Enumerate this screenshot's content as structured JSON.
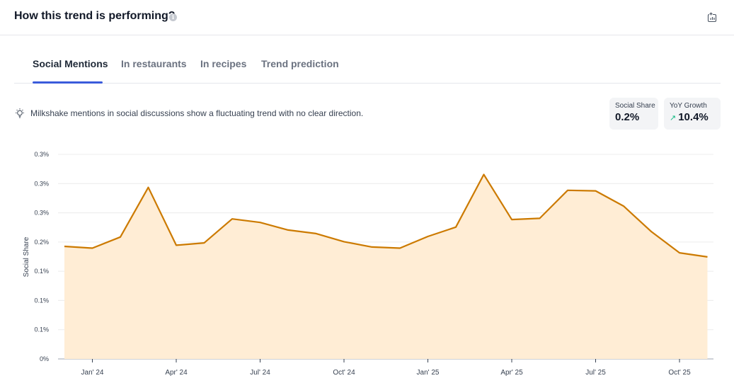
{
  "header": {
    "title": "How this trend is performing?",
    "info_icon": "info-icon",
    "export_icon": "chart-export-icon"
  },
  "tabs": [
    {
      "label": "Social Mentions",
      "active": true
    },
    {
      "label": "In restaurants",
      "active": false
    },
    {
      "label": "In recipes",
      "active": false
    },
    {
      "label": "Trend prediction",
      "active": false
    }
  ],
  "insight": {
    "icon": "lightbulb-icon",
    "text": "Milkshake mentions in social discussions show a fluctuating trend with no clear direction."
  },
  "stats": {
    "social_share": {
      "label": "Social Share",
      "value": "0.2%"
    },
    "yoy_growth": {
      "label": "YoY Growth",
      "value": "10.4%",
      "icon": "trend-up-icon",
      "color": "#10b981"
    }
  },
  "colors": {
    "line": "#cc7a00",
    "fill": "#ffedd5",
    "tab_accent": "#3b5bdb"
  },
  "chart_data": {
    "type": "area",
    "ylabel": "Social Share",
    "xlabel": "",
    "y_tick_labels": [
      "0%",
      "0.1%",
      "0.1%",
      "0.1%",
      "0.2%",
      "0.3%",
      "0.3%",
      "0.3%"
    ],
    "ylim": [
      0,
      0.35
    ],
    "x_tick_labels": [
      "Jan' 24",
      "Apr' 24",
      "Jul' 24",
      "Oct' 24",
      "Jan' 25",
      "Apr' 25",
      "Jul' 25",
      "Oct' 25"
    ],
    "x_tick_positions": [
      0,
      3,
      6,
      9,
      12,
      15,
      18,
      21
    ],
    "x": [
      -1,
      0,
      1,
      2,
      3,
      4,
      5,
      6,
      7,
      8,
      9,
      10,
      11,
      12,
      13,
      14,
      15,
      16,
      17,
      18,
      19,
      20,
      21,
      22
    ],
    "values": [
      0.1925,
      0.1895,
      0.2085,
      0.2935,
      0.1945,
      0.1985,
      0.2395,
      0.2335,
      0.2205,
      0.2145,
      0.2005,
      0.1915,
      0.1895,
      0.2095,
      0.2255,
      0.3155,
      0.2385,
      0.2405,
      0.2885,
      0.2875,
      0.2615,
      0.2175,
      0.1815,
      0.1745
    ],
    "grid": true
  }
}
